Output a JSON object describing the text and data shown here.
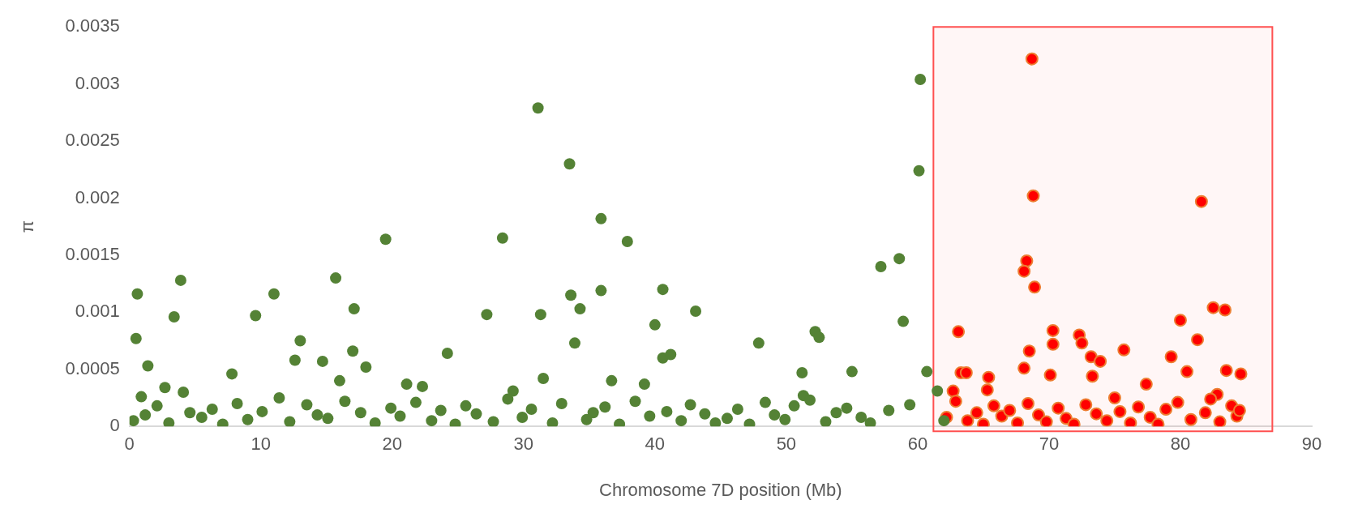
{
  "chart_data": {
    "type": "scatter",
    "xlabel": "Chromosome 7D position (Mb)",
    "ylabel": "π",
    "xlim": [
      0,
      90
    ],
    "xticks": [
      0,
      10,
      20,
      30,
      40,
      50,
      60,
      70,
      80,
      90
    ],
    "ylim": [
      0,
      0.0035
    ],
    "yticks": [
      0,
      0.0005,
      0.001,
      0.0015,
      0.002,
      0.0025,
      0.003,
      0.0035
    ],
    "grid": false,
    "legend": false,
    "marker": "circle",
    "bands": [
      {
        "axis": "x",
        "from": 61.2,
        "to": 87,
        "color": "#ff5050"
      }
    ],
    "series": [
      {
        "color": "#548235",
        "x": [
          0.5,
          0.6,
          0.9,
          1.4,
          3.4,
          3.9,
          4.1,
          2.7,
          7.8,
          9.6,
          11,
          12.6,
          13,
          14.7,
          15.7,
          16,
          17.1,
          17,
          18,
          19.5,
          21.1,
          22.3,
          24.2,
          27.2,
          28.4,
          29.2,
          31.1,
          31.3,
          31.5,
          33.5,
          33.6,
          33.9,
          34.3,
          35.9,
          35.9,
          36.7,
          37.9,
          39.2,
          40,
          40.6,
          40.6,
          41.2,
          43.1,
          47.9,
          51.3,
          51.2,
          52.2,
          52.5,
          55,
          57.2,
          58.6,
          58.9,
          60.2,
          60.1,
          60.7,
          0.3,
          1.2,
          2.1,
          3,
          4.6,
          5.5,
          6.3,
          7.1,
          8.2,
          9,
          10.1,
          11.4,
          12.2,
          13.5,
          14.3,
          15.1,
          16.4,
          17.6,
          18.7,
          19.9,
          20.6,
          21.8,
          23,
          23.7,
          24.8,
          25.6,
          26.4,
          27.7,
          28.8,
          29.9,
          30.6,
          32.2,
          32.9,
          34.8,
          35.3,
          36.2,
          37.3,
          38.5,
          39.6,
          40.9,
          42,
          42.7,
          43.8,
          44.6,
          45.5,
          46.3,
          47.2,
          48.4,
          49.1,
          49.9,
          50.6,
          51.8,
          53,
          53.8,
          54.6,
          55.7,
          56.4,
          57.8,
          59.4,
          61.5,
          62
        ],
        "values": [
          0.00077,
          0.00116,
          0.00026,
          0.00053,
          0.00096,
          0.00128,
          0.0003,
          0.00034,
          0.00046,
          0.00097,
          0.00116,
          0.00058,
          0.00075,
          0.00057,
          0.0013,
          0.0004,
          0.00103,
          0.00066,
          0.00052,
          0.00164,
          0.00037,
          0.00035,
          0.00064,
          0.00098,
          0.00165,
          0.00031,
          0.00279,
          0.00098,
          0.00042,
          0.0023,
          0.00115,
          0.00073,
          0.00103,
          0.00182,
          0.00119,
          0.0004,
          0.00162,
          0.00037,
          0.00089,
          0.0012,
          0.0006,
          0.00063,
          0.00101,
          0.00073,
          0.00027,
          0.00047,
          0.00083,
          0.00078,
          0.00048,
          0.0014,
          0.00147,
          0.00092,
          0.00304,
          0.00224,
          0.00048,
          5e-05,
          0.0001,
          0.00018,
          3e-05,
          0.00012,
          8e-05,
          0.00015,
          2e-05,
          0.0002,
          6e-05,
          0.00013,
          0.00025,
          4e-05,
          0.00019,
          0.0001,
          7e-05,
          0.00022,
          0.00012,
          3e-05,
          0.00016,
          9e-05,
          0.00021,
          5e-05,
          0.00014,
          2e-05,
          0.00018,
          0.00011,
          4e-05,
          0.00024,
          8e-05,
          0.00015,
          3e-05,
          0.0002,
          6e-05,
          0.00012,
          0.00017,
          2e-05,
          0.00022,
          9e-05,
          0.00013,
          5e-05,
          0.00019,
          0.00011,
          3e-05,
          7e-05,
          0.00015,
          2e-05,
          0.00021,
          0.0001,
          6e-05,
          0.00018,
          0.00023,
          4e-05,
          0.00012,
          0.00016,
          8e-05,
          3e-05,
          0.00014,
          0.00019,
          0.00031,
          5e-05
        ]
      },
      {
        "color": "#ff0000",
        "x": [
          68.7,
          68.8,
          68.3,
          68.1,
          68.9,
          63.1,
          63.3,
          63.7,
          62.7,
          65.4,
          65.3,
          68.1,
          68.5,
          70.3,
          70.3,
          70.1,
          72.3,
          72.5,
          73.2,
          73.9,
          73.3,
          75.7,
          77.4,
          79.3,
          80,
          81.3,
          81.6,
          82.5,
          83.4,
          83.5,
          84.6,
          82.8,
          80.5,
          62.2,
          62.9,
          63.8,
          64.5,
          65,
          65.8,
          66.4,
          67,
          67.6,
          68.4,
          69.2,
          69.8,
          70.7,
          71.3,
          71.9,
          72.8,
          73.6,
          74.4,
          75,
          75.4,
          76.2,
          76.8,
          77.7,
          78.3,
          78.9,
          79.8,
          80.8,
          81.9,
          82.3,
          83,
          83.9,
          84.3,
          84.5
        ],
        "values": [
          0.00322,
          0.00202,
          0.00145,
          0.00136,
          0.00122,
          0.00083,
          0.00047,
          0.00047,
          0.00031,
          0.00043,
          0.00032,
          0.00051,
          0.00066,
          0.00084,
          0.00072,
          0.00045,
          0.0008,
          0.00073,
          0.00061,
          0.00057,
          0.00044,
          0.00067,
          0.00037,
          0.00061,
          0.00093,
          0.00076,
          0.00197,
          0.00104,
          0.00102,
          0.00049,
          0.00046,
          0.00028,
          0.00048,
          8e-05,
          0.00022,
          5e-05,
          0.00012,
          2e-05,
          0.00018,
          9e-05,
          0.00014,
          3e-05,
          0.0002,
          0.0001,
          4e-05,
          0.00016,
          7e-05,
          2e-05,
          0.00019,
          0.00011,
          5e-05,
          0.00025,
          0.00013,
          3e-05,
          0.00017,
          8e-05,
          2e-05,
          0.00015,
          0.00021,
          6e-05,
          0.00012,
          0.00024,
          4e-05,
          0.00018,
          9e-05,
          0.00014
        ]
      }
    ]
  }
}
